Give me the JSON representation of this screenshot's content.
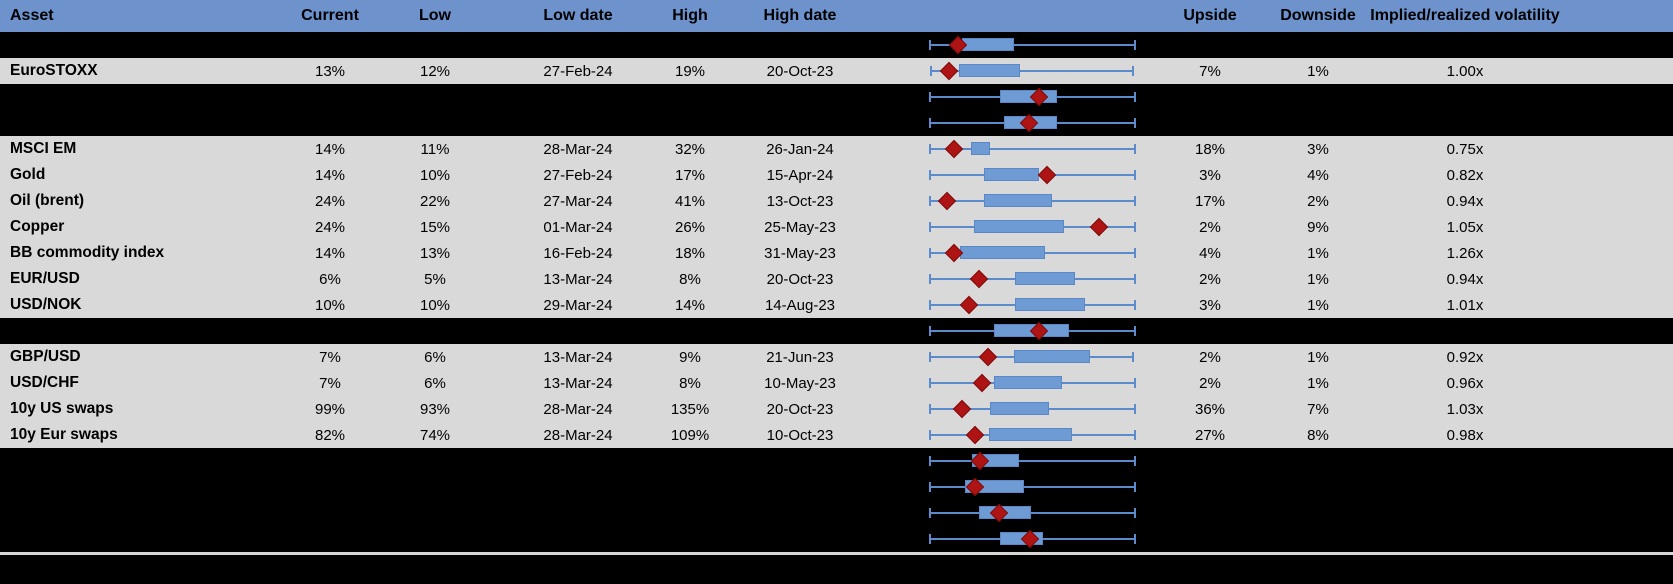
{
  "colors": {
    "header_bg": "#6D92CC",
    "header_text": "#FFFFFF",
    "row_bg": "#D9D9D9",
    "hidden_row_bg": "#000000",
    "text": "#000000",
    "box_fill": "#6F9BD5",
    "box_border": "#5A87C5",
    "whisker": "#5B8BCB",
    "marker": "#AE1414",
    "marker_border": "#7E0D0D",
    "separator": "#D6D6D6"
  },
  "header": {
    "asset": "Asset",
    "current": "Current",
    "low": "Low",
    "low_date": "Low date",
    "high": "High",
    "high_date": "High date",
    "chart": "",
    "upside": "Upside",
    "downside": "Downside",
    "implied_realized": "Implied/realized volatility"
  },
  "rows": [
    {
      "asset": null,
      "plot": {
        "whisker_min": 1.0,
        "box_low": 16.7,
        "marker": 14.8,
        "box_high": 41.4,
        "whisker_max": 98.6
      }
    },
    {
      "asset": "EuroSTOXX",
      "current": "13%",
      "low": "12%",
      "low_date": "27-Feb-24",
      "high": "19%",
      "high_date": "20-Oct-23",
      "upside": "7%",
      "downside": "1%",
      "implied_realized": "1.00x",
      "plot": {
        "whisker_min": 1.4,
        "box_low": 15.2,
        "marker": 10.5,
        "box_high": 44.3,
        "whisker_max": 97.6
      }
    },
    {
      "asset": null,
      "plot": {
        "whisker_min": 1.0,
        "box_low": 34.8,
        "marker": 53.3,
        "box_high": 61.9,
        "whisker_max": 98.6
      }
    },
    {
      "asset": null,
      "plot": {
        "whisker_min": 1.0,
        "box_low": 36.7,
        "marker": 48.6,
        "box_high": 61.9,
        "whisker_max": 98.6
      }
    },
    {
      "asset": "MSCI EM",
      "current": "14%",
      "low": "11%",
      "low_date": "28-Mar-24",
      "high": "32%",
      "high_date": "26-Jan-24",
      "upside": "18%",
      "downside": "3%",
      "implied_realized": "0.75x",
      "plot": {
        "whisker_min": 1.0,
        "box_low": 21.0,
        "marker": 12.9,
        "box_high": 30.0,
        "whisker_max": 98.6
      }
    },
    {
      "asset": "Gold",
      "current": "14%",
      "low": "10%",
      "low_date": "27-Feb-24",
      "high": "17%",
      "high_date": "15-Apr-24",
      "upside": "3%",
      "downside": "4%",
      "implied_realized": "0.82x",
      "plot": {
        "whisker_min": 1.0,
        "box_low": 27.1,
        "marker": 57.1,
        "box_high": 53.3,
        "whisker_max": 98.6
      }
    },
    {
      "asset": "Oil (brent)",
      "current": "24%",
      "low": "22%",
      "low_date": "27-Mar-24",
      "high": "41%",
      "high_date": "13-Oct-23",
      "upside": "17%",
      "downside": "2%",
      "implied_realized": "0.94x",
      "plot": {
        "whisker_min": 1.0,
        "box_low": 27.1,
        "marker": 9.5,
        "box_high": 59.5,
        "whisker_max": 98.6
      }
    },
    {
      "asset": "Copper",
      "current": "24%",
      "low": "15%",
      "low_date": "01-Mar-24",
      "high": "26%",
      "high_date": "25-May-23",
      "upside": "2%",
      "downside": "9%",
      "implied_realized": "1.05x",
      "plot": {
        "whisker_min": 1.0,
        "box_low": 22.4,
        "marker": 81.9,
        "box_high": 65.2,
        "whisker_max": 98.6
      }
    },
    {
      "asset": "BB commodity index",
      "current": "14%",
      "low": "13%",
      "low_date": "16-Feb-24",
      "high": "18%",
      "high_date": "31-May-23",
      "upside": "4%",
      "downside": "1%",
      "implied_realized": "1.26x",
      "plot": {
        "whisker_min": 1.0,
        "box_low": 15.7,
        "marker": 12.9,
        "box_high": 56.2,
        "whisker_max": 98.6
      }
    },
    {
      "asset": "EUR/USD",
      "current": "6%",
      "low": "5%",
      "low_date": "13-Mar-24",
      "high": "8%",
      "high_date": "20-Oct-23",
      "upside": "2%",
      "downside": "1%",
      "implied_realized": "0.94x",
      "plot": {
        "whisker_min": 1.0,
        "box_low": 41.9,
        "marker": 24.8,
        "box_high": 70.5,
        "whisker_max": 98.6
      }
    },
    {
      "asset": "USD/NOK",
      "current": "10%",
      "low": "10%",
      "low_date": "29-Mar-24",
      "high": "14%",
      "high_date": "14-Aug-23",
      "upside": "3%",
      "downside": "1%",
      "implied_realized": "1.01x",
      "plot": {
        "whisker_min": 1.0,
        "box_low": 41.9,
        "marker": 20.0,
        "box_high": 75.2,
        "whisker_max": 98.6
      }
    },
    {
      "asset": null,
      "plot": {
        "whisker_min": 1.0,
        "box_low": 31.9,
        "marker": 53.3,
        "box_high": 67.6,
        "whisker_max": 98.6
      }
    },
    {
      "asset": "GBP/USD",
      "current": "7%",
      "low": "6%",
      "low_date": "13-Mar-24",
      "high": "9%",
      "high_date": "21-Jun-23",
      "upside": "2%",
      "downside": "1%",
      "implied_realized": "0.92x",
      "plot": {
        "whisker_min": 1.0,
        "box_low": 41.4,
        "marker": 29.0,
        "box_high": 77.6,
        "whisker_max": 97.6
      }
    },
    {
      "asset": "USD/CHF",
      "current": "7%",
      "low": "6%",
      "low_date": "13-Mar-24",
      "high": "8%",
      "high_date": "10-May-23",
      "upside": "2%",
      "downside": "1%",
      "implied_realized": "0.96x",
      "plot": {
        "whisker_min": 1.0,
        "box_low": 31.9,
        "marker": 26.2,
        "box_high": 64.3,
        "whisker_max": 98.6
      }
    },
    {
      "asset": "10y US swaps",
      "current": "99%",
      "low": "93%",
      "low_date": "28-Mar-24",
      "high": "135%",
      "high_date": "20-Oct-23",
      "upside": "36%",
      "downside": "7%",
      "implied_realized": "1.03x",
      "plot": {
        "whisker_min": 1.0,
        "box_low": 30.0,
        "marker": 16.7,
        "box_high": 58.1,
        "whisker_max": 98.6
      }
    },
    {
      "asset": "10y Eur swaps",
      "current": "82%",
      "low": "74%",
      "low_date": "28-Mar-24",
      "high": "109%",
      "high_date": "10-Oct-23",
      "upside": "27%",
      "downside": "8%",
      "implied_realized": "0.98x",
      "plot": {
        "whisker_min": 1.0,
        "box_low": 29.5,
        "marker": 22.9,
        "box_high": 69.0,
        "whisker_max": 98.6
      }
    },
    {
      "asset": null,
      "plot": {
        "whisker_min": 1.0,
        "box_low": 21.4,
        "marker": 25.2,
        "box_high": 43.8,
        "whisker_max": 98.6
      }
    },
    {
      "asset": null,
      "plot": {
        "whisker_min": 1.0,
        "box_low": 18.1,
        "marker": 22.9,
        "box_high": 46.2,
        "whisker_max": 98.6
      }
    },
    {
      "asset": null,
      "plot": {
        "whisker_min": 1.0,
        "box_low": 24.8,
        "marker": 34.3,
        "box_high": 49.5,
        "whisker_max": 98.6
      }
    },
    {
      "asset": null,
      "plot": {
        "whisker_min": 1.0,
        "box_low": 34.8,
        "marker": 49.0,
        "box_high": 55.2,
        "whisker_max": 98.6
      }
    }
  ],
  "chart_data": {
    "type": "boxplot",
    "orientation": "horizontal",
    "title": "Implied volatility ranges with current level marker (red diamond)",
    "value_scale": "percent of plot width (0-100); no numeric axis is shown in the image",
    "legend_position": "none",
    "grid": false,
    "series": [
      {
        "name": "hidden-row-1",
        "whisker_min": 1.0,
        "box_low": 16.7,
        "marker": 14.8,
        "box_high": 41.4,
        "whisker_max": 98.6
      },
      {
        "name": "EuroSTOXX",
        "whisker_min": 1.4,
        "box_low": 15.2,
        "marker": 10.5,
        "box_high": 44.3,
        "whisker_max": 97.6
      },
      {
        "name": "hidden-row-2",
        "whisker_min": 1.0,
        "box_low": 34.8,
        "marker": 53.3,
        "box_high": 61.9,
        "whisker_max": 98.6
      },
      {
        "name": "hidden-row-3",
        "whisker_min": 1.0,
        "box_low": 36.7,
        "marker": 48.6,
        "box_high": 61.9,
        "whisker_max": 98.6
      },
      {
        "name": "MSCI EM",
        "whisker_min": 1.0,
        "box_low": 21.0,
        "marker": 12.9,
        "box_high": 30.0,
        "whisker_max": 98.6
      },
      {
        "name": "Gold",
        "whisker_min": 1.0,
        "box_low": 27.1,
        "marker": 57.1,
        "box_high": 53.3,
        "whisker_max": 98.6
      },
      {
        "name": "Oil (brent)",
        "whisker_min": 1.0,
        "box_low": 27.1,
        "marker": 9.5,
        "box_high": 59.5,
        "whisker_max": 98.6
      },
      {
        "name": "Copper",
        "whisker_min": 1.0,
        "box_low": 22.4,
        "marker": 81.9,
        "box_high": 65.2,
        "whisker_max": 98.6
      },
      {
        "name": "BB commodity index",
        "whisker_min": 1.0,
        "box_low": 15.7,
        "marker": 12.9,
        "box_high": 56.2,
        "whisker_max": 98.6
      },
      {
        "name": "EUR/USD",
        "whisker_min": 1.0,
        "box_low": 41.9,
        "marker": 24.8,
        "box_high": 70.5,
        "whisker_max": 98.6
      },
      {
        "name": "USD/NOK",
        "whisker_min": 1.0,
        "box_low": 41.9,
        "marker": 20.0,
        "box_high": 75.2,
        "whisker_max": 98.6
      },
      {
        "name": "hidden-row-4",
        "whisker_min": 1.0,
        "box_low": 31.9,
        "marker": 53.3,
        "box_high": 67.6,
        "whisker_max": 98.6
      },
      {
        "name": "GBP/USD",
        "whisker_min": 1.0,
        "box_low": 41.4,
        "marker": 29.0,
        "box_high": 77.6,
        "whisker_max": 97.6
      },
      {
        "name": "USD/CHF",
        "whisker_min": 1.0,
        "box_low": 31.9,
        "marker": 26.2,
        "box_high": 64.3,
        "whisker_max": 98.6
      },
      {
        "name": "10y US swaps",
        "whisker_min": 1.0,
        "box_low": 30.0,
        "marker": 16.7,
        "box_high": 58.1,
        "whisker_max": 98.6
      },
      {
        "name": "10y Eur swaps",
        "whisker_min": 1.0,
        "box_low": 29.5,
        "marker": 22.9,
        "box_high": 69.0,
        "whisker_max": 98.6
      },
      {
        "name": "hidden-row-5",
        "whisker_min": 1.0,
        "box_low": 21.4,
        "marker": 25.2,
        "box_high": 43.8,
        "whisker_max": 98.6
      },
      {
        "name": "hidden-row-6",
        "whisker_min": 1.0,
        "box_low": 18.1,
        "marker": 22.9,
        "box_high": 46.2,
        "whisker_max": 98.6
      },
      {
        "name": "hidden-row-7",
        "whisker_min": 1.0,
        "box_low": 24.8,
        "marker": 34.3,
        "box_high": 49.5,
        "whisker_max": 98.6
      },
      {
        "name": "hidden-row-8",
        "whisker_min": 1.0,
        "box_low": 34.8,
        "marker": 49.0,
        "box_high": 55.2,
        "whisker_max": 98.6
      }
    ]
  }
}
